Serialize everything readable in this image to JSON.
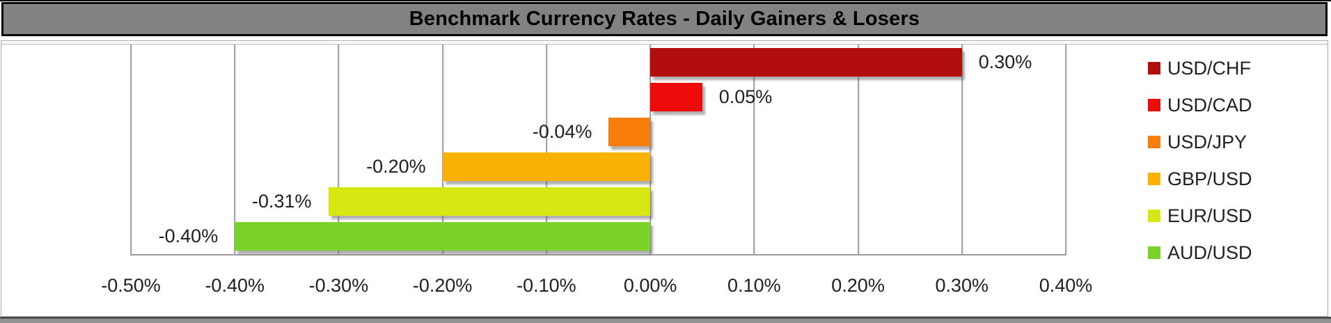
{
  "chart_data": {
    "type": "bar",
    "orientation": "horizontal",
    "title": "Benchmark Currency Rates - Daily Gainers & Losers",
    "categories": [
      "USD/CHF",
      "USD/CAD",
      "USD/JPY",
      "GBP/USD",
      "EUR/USD",
      "AUD/USD"
    ],
    "series": [
      {
        "name": "USD/CHF",
        "value": 0.3,
        "label": "0.30%",
        "color": "#b20e0e"
      },
      {
        "name": "USD/CAD",
        "value": 0.05,
        "label": "0.05%",
        "color": "#ee0b0b"
      },
      {
        "name": "USD/JPY",
        "value": -0.04,
        "label": "-0.04%",
        "color": "#f87d0b"
      },
      {
        "name": "GBP/USD",
        "value": -0.2,
        "label": "-0.20%",
        "color": "#f9b104"
      },
      {
        "name": "EUR/USD",
        "value": -0.31,
        "label": "-0.31%",
        "color": "#d7e712"
      },
      {
        "name": "AUD/USD",
        "value": -0.4,
        "label": "-0.40%",
        "color": "#7bd229"
      }
    ],
    "xlim": [
      -0.5,
      0.4
    ],
    "x_ticks": [
      {
        "value": -0.5,
        "label": "-0.50%"
      },
      {
        "value": -0.4,
        "label": "-0.40%"
      },
      {
        "value": -0.3,
        "label": "-0.30%"
      },
      {
        "value": -0.2,
        "label": "-0.20%"
      },
      {
        "value": -0.1,
        "label": "-0.10%"
      },
      {
        "value": 0.0,
        "label": "0.00%"
      },
      {
        "value": 0.1,
        "label": "0.10%"
      },
      {
        "value": 0.2,
        "label": "0.20%"
      },
      {
        "value": 0.3,
        "label": "0.30%"
      },
      {
        "value": 0.4,
        "label": "0.40%"
      }
    ],
    "grid": true,
    "legend_position": "right",
    "value_format": "percent"
  },
  "colors": {
    "title_bar_bg": "#828282",
    "grid": "#a6a6a6",
    "text": "#1f1f1f",
    "frame": "#a9a9a9"
  }
}
